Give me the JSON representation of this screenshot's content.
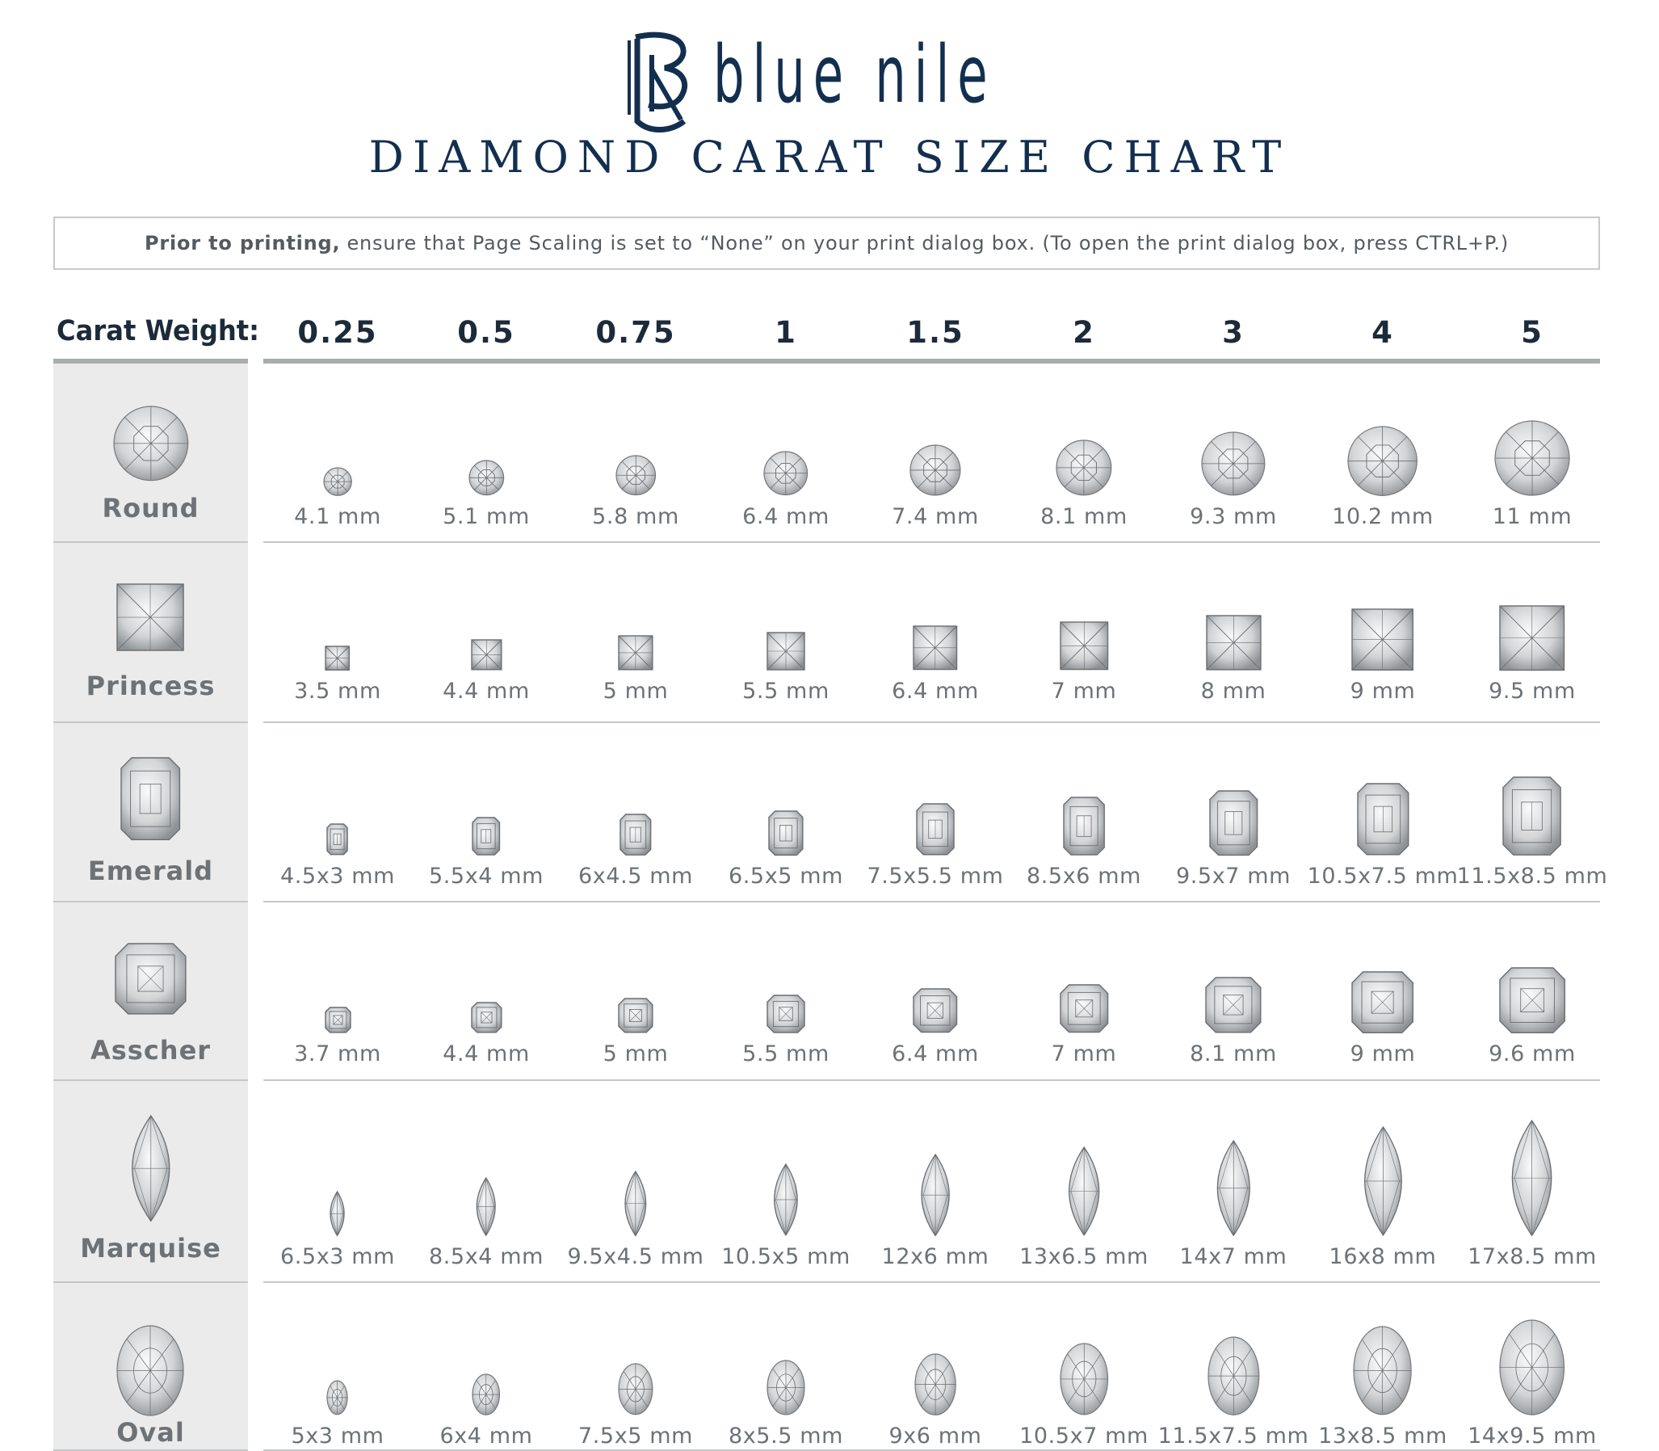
{
  "brand": {
    "name": "blue nile",
    "logo_icon": "bn-monogram-icon"
  },
  "title": "DIAMOND CARAT SIZE CHART",
  "print_note": {
    "bold": "Prior to printing,",
    "text": "ensure that Page Scaling is set to “None” on your print dialog box. (To open the print dialog box, press CTRL+P.)"
  },
  "table": {
    "row_header_label": "Carat Weight:",
    "carat_weights": [
      "0.25",
      "0.5",
      "0.75",
      "1",
      "1.5",
      "2",
      "3",
      "4",
      "5"
    ],
    "rows": [
      {
        "shape": "Round",
        "icon": "round-diamond-icon",
        "sizes": [
          "4.1 mm",
          "5.1 mm",
          "5.8 mm",
          "6.4 mm",
          "7.4 mm",
          "8.1 mm",
          "9.3 mm",
          "10.2 mm",
          "11 mm"
        ]
      },
      {
        "shape": "Princess",
        "icon": "princess-diamond-icon",
        "sizes": [
          "3.5 mm",
          "4.4 mm",
          "5 mm",
          "5.5 mm",
          "6.4 mm",
          "7 mm",
          "8 mm",
          "9 mm",
          "9.5 mm"
        ]
      },
      {
        "shape": "Emerald",
        "icon": "emerald-diamond-icon",
        "sizes": [
          "4.5x3 mm",
          "5.5x4 mm",
          "6x4.5 mm",
          "6.5x5 mm",
          "7.5x5.5 mm",
          "8.5x6 mm",
          "9.5x7 mm",
          "10.5x7.5 mm",
          "11.5x8.5 mm"
        ]
      },
      {
        "shape": "Asscher",
        "icon": "asscher-diamond-icon",
        "sizes": [
          "3.7 mm",
          "4.4 mm",
          "5 mm",
          "5.5 mm",
          "6.4 mm",
          "7 mm",
          "8.1 mm",
          "9 mm",
          "9.6 mm"
        ]
      },
      {
        "shape": "Marquise",
        "icon": "marquise-diamond-icon",
        "sizes": [
          "6.5x3 mm",
          "8.5x4 mm",
          "9.5x4.5 mm",
          "10.5x5 mm",
          "12x6 mm",
          "13x6.5 mm",
          "14x7 mm",
          "16x8 mm",
          "17x8.5 mm"
        ]
      },
      {
        "shape": "Oval",
        "icon": "oval-diamond-icon",
        "sizes": [
          "5x3 mm",
          "6x4 mm",
          "7.5x5 mm",
          "8x5.5 mm",
          "9x6 mm",
          "10.5x7 mm",
          "11.5x7.5 mm",
          "13x8.5 mm",
          "14x9.5 mm"
        ]
      }
    ]
  },
  "colors": {
    "brand_navy": "#132f4f",
    "label_gray": "#6d7276",
    "sidebar_bg": "#ebebeb",
    "rule_gray": "#a9adae"
  }
}
